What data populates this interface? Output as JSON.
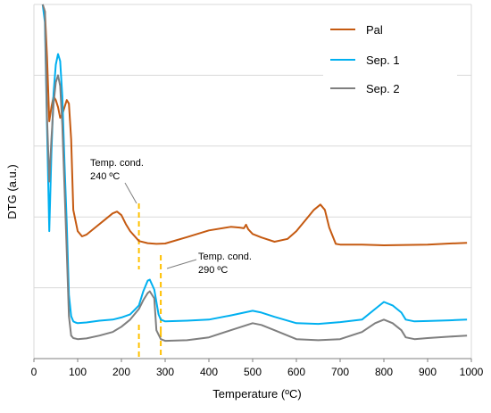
{
  "chart_data": {
    "type": "line",
    "xlabel": "Temperature (ºC)",
    "ylabel": "DTG (a.u.)",
    "xlim": [
      0,
      1000
    ],
    "ylim": [
      0,
      1
    ],
    "x_ticks": [
      0,
      100,
      200,
      300,
      400,
      500,
      600,
      700,
      800,
      900,
      1000
    ],
    "grid": "horizontal",
    "legend_position": "top-right",
    "series": [
      {
        "name": "Pal",
        "color": "#C55A11",
        "x": [
          20,
          25,
          30,
          35,
          40,
          45,
          50,
          55,
          60,
          65,
          70,
          75,
          80,
          85,
          90,
          100,
          110,
          120,
          140,
          160,
          180,
          190,
          200,
          210,
          220,
          240,
          260,
          280,
          300,
          350,
          400,
          450,
          470,
          480,
          485,
          490,
          500,
          520,
          550,
          580,
          600,
          620,
          640,
          655,
          665,
          675,
          690,
          700,
          750,
          800,
          850,
          900,
          950,
          990
        ],
        "y": [
          1.0,
          0.98,
          0.85,
          0.67,
          0.71,
          0.74,
          0.73,
          0.71,
          0.68,
          0.69,
          0.71,
          0.73,
          0.72,
          0.62,
          0.42,
          0.36,
          0.345,
          0.35,
          0.37,
          0.39,
          0.41,
          0.415,
          0.405,
          0.38,
          0.36,
          0.332,
          0.326,
          0.324,
          0.325,
          0.343,
          0.362,
          0.372,
          0.37,
          0.368,
          0.378,
          0.365,
          0.352,
          0.342,
          0.33,
          0.338,
          0.36,
          0.39,
          0.42,
          0.435,
          0.42,
          0.37,
          0.324,
          0.322,
          0.322,
          0.32,
          0.321,
          0.322,
          0.325,
          0.327
        ]
      },
      {
        "name": "Sep. 1",
        "color": "#00B0F0",
        "x": [
          20,
          25,
          30,
          35,
          40,
          45,
          50,
          55,
          60,
          65,
          70,
          75,
          80,
          85,
          90,
          95,
          100,
          120,
          150,
          180,
          200,
          220,
          240,
          250,
          260,
          265,
          275,
          285,
          290,
          300,
          350,
          400,
          450,
          500,
          520,
          550,
          600,
          650,
          700,
          750,
          780,
          800,
          820,
          840,
          850,
          870,
          900,
          950,
          990
        ],
        "y": [
          1.0,
          0.95,
          0.65,
          0.36,
          0.58,
          0.75,
          0.83,
          0.86,
          0.84,
          0.74,
          0.55,
          0.38,
          0.18,
          0.12,
          0.105,
          0.102,
          0.1,
          0.102,
          0.107,
          0.11,
          0.116,
          0.125,
          0.15,
          0.19,
          0.22,
          0.223,
          0.195,
          0.125,
          0.11,
          0.105,
          0.107,
          0.11,
          0.122,
          0.135,
          0.13,
          0.118,
          0.1,
          0.098,
          0.103,
          0.11,
          0.14,
          0.16,
          0.15,
          0.13,
          0.11,
          0.105,
          0.106,
          0.108,
          0.11
        ]
      },
      {
        "name": "Sep. 2",
        "color": "#7F7F7F",
        "x": [
          20,
          25,
          30,
          35,
          40,
          45,
          50,
          55,
          60,
          65,
          70,
          75,
          80,
          85,
          90,
          100,
          120,
          150,
          180,
          200,
          220,
          240,
          250,
          260,
          265,
          275,
          280,
          290,
          300,
          350,
          400,
          450,
          500,
          520,
          550,
          600,
          650,
          700,
          750,
          780,
          800,
          820,
          840,
          850,
          870,
          900,
          950,
          990
        ],
        "y": [
          1.0,
          0.98,
          0.68,
          0.5,
          0.62,
          0.72,
          0.78,
          0.8,
          0.77,
          0.66,
          0.48,
          0.3,
          0.12,
          0.065,
          0.058,
          0.055,
          0.057,
          0.065,
          0.075,
          0.09,
          0.11,
          0.14,
          0.165,
          0.185,
          0.19,
          0.17,
          0.08,
          0.055,
          0.05,
          0.052,
          0.06,
          0.08,
          0.1,
          0.095,
          0.08,
          0.055,
          0.052,
          0.055,
          0.075,
          0.1,
          0.11,
          0.1,
          0.08,
          0.06,
          0.055,
          0.058,
          0.062,
          0.065
        ]
      }
    ],
    "annotations": [
      {
        "line1": "Temp. cond.",
        "line2": "240 ºC",
        "x": 240
      },
      {
        "line1": "Temp. cond.",
        "line2": "290 ºC",
        "x": 290
      }
    ],
    "marker_color": "#FFC000"
  }
}
